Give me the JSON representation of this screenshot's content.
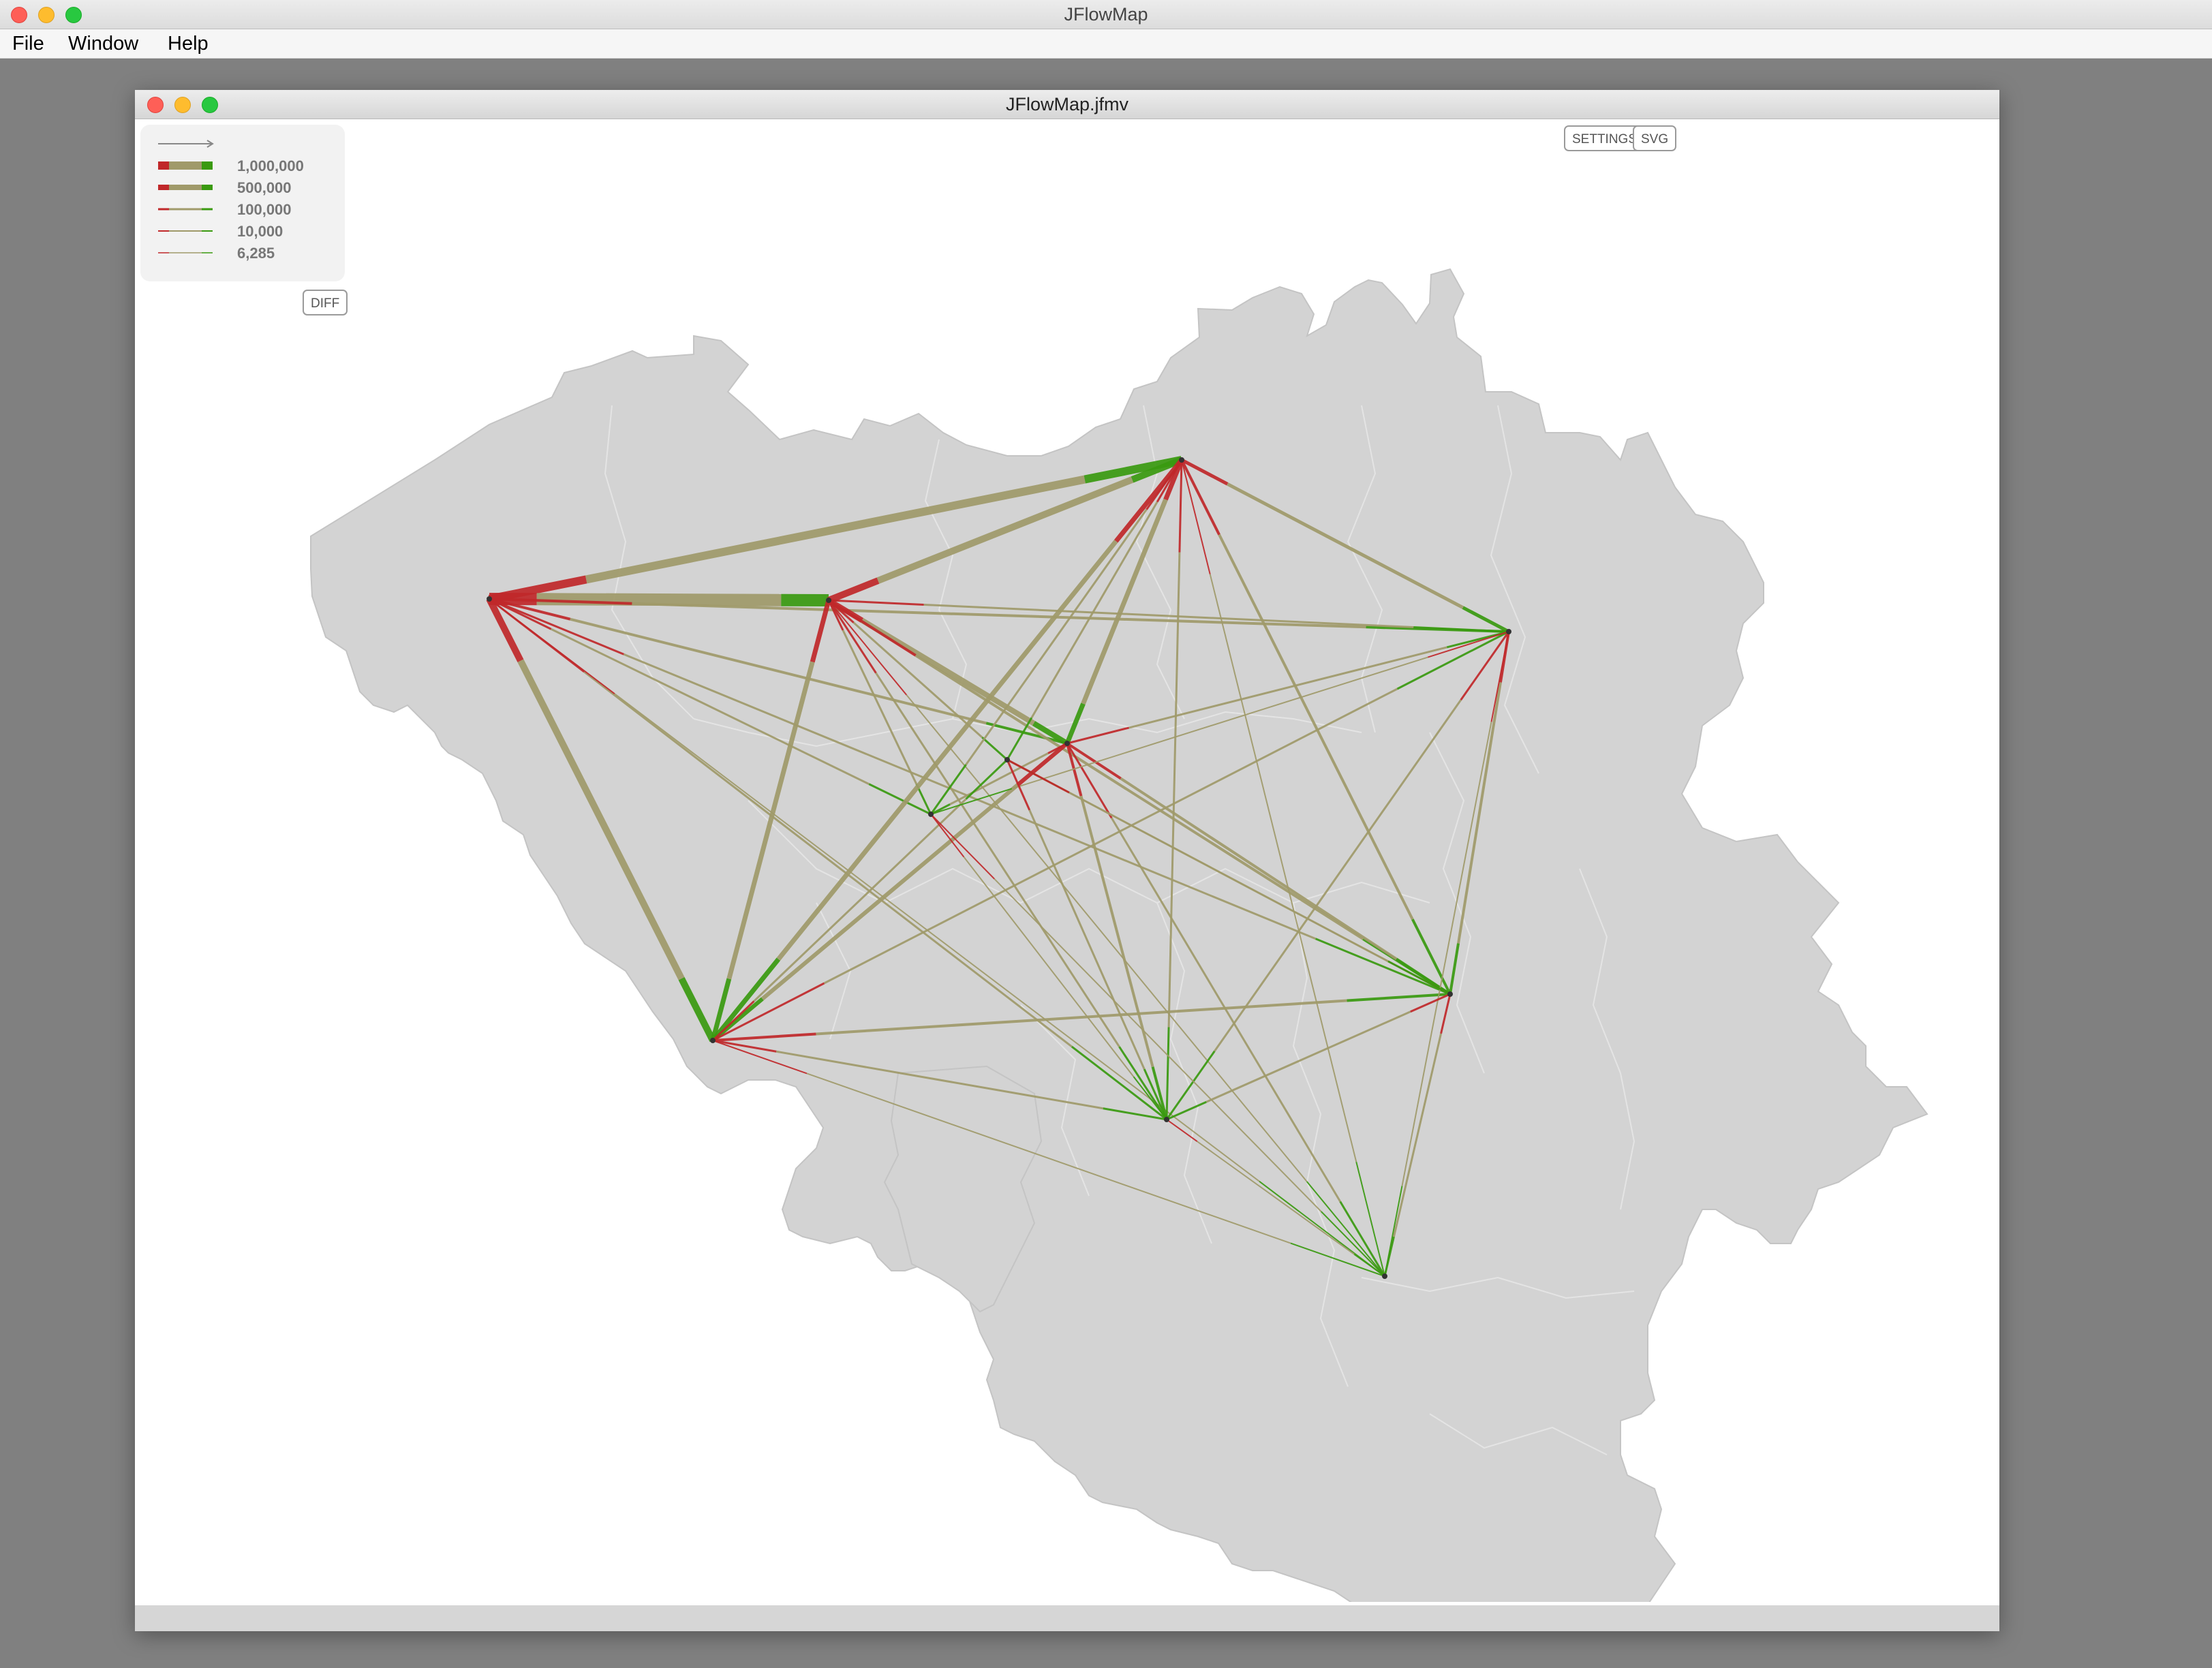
{
  "app": {
    "title": "JFlowMap"
  },
  "menu": {
    "items": [
      "File",
      "Window",
      "Help"
    ]
  },
  "frame": {
    "title": "JFlowMap.jfmv"
  },
  "toolbar": {
    "settings_label": "SETTINGS",
    "svg_label": "SVG",
    "diff_label": "DIFF"
  },
  "legend": {
    "labels": [
      "1,000,000",
      "500,000",
      "100,000",
      "10,000",
      "6,285"
    ]
  },
  "colors": {
    "source": "#c0282a",
    "target": "#3a9a10",
    "mid": "#a09a6a",
    "map_fill": "#d3d3d3"
  }
}
